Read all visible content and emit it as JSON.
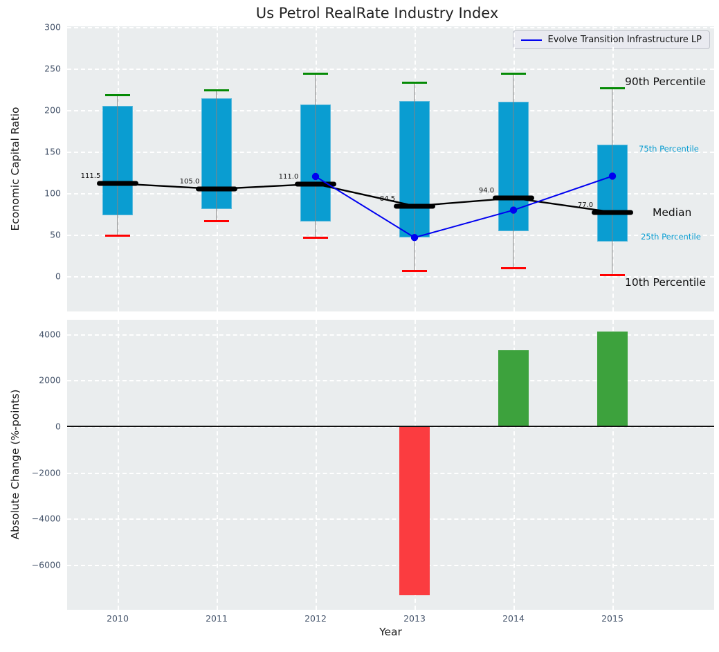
{
  "title": "Us Petrol RealRate Industry Index",
  "colors": {
    "box_fill": "#0a9dd1",
    "box_edge": "#5ab9dc",
    "whisker": "#848484",
    "cap_90th": "#048a04",
    "cap_10th": "#ff0000",
    "median_line": "#000000",
    "company_line": "#0000f0",
    "bar_positive": "#3da23d",
    "bar_negative": "#fb3c40",
    "axes_background": "#eaedee",
    "grid": "#ffffff",
    "tick_text": "#44536a",
    "percentile_accent": "#0a9dd1"
  },
  "chart_data": [
    {
      "type": "boxplot+line",
      "title": "Us Petrol RealRate Industry Index",
      "ylabel": "Economic Capital Ratio",
      "ylim": [
        -42.5,
        301
      ],
      "yticks": [
        300,
        250,
        200,
        150,
        100,
        50,
        0
      ],
      "grid": "dashed-white",
      "categories": [
        "2010",
        "2011",
        "2012",
        "2013",
        "2014",
        "2015"
      ],
      "boxes": [
        {
          "year": "2010",
          "p10": 49,
          "p25": 73,
          "median": 111.5,
          "p75": 205,
          "p90": 218,
          "median_label": "111.5"
        },
        {
          "year": "2011",
          "p10": 66,
          "p25": 81,
          "median": 105.0,
          "p75": 214,
          "p90": 224,
          "median_label": "105.0"
        },
        {
          "year": "2012",
          "p10": 46,
          "p25": 66,
          "median": 111.0,
          "p75": 207,
          "p90": 244,
          "median_label": "111.0"
        },
        {
          "year": "2013",
          "p10": 6,
          "p25": 47,
          "median": 84.5,
          "p75": 211,
          "p90": 233,
          "median_label": "84.5"
        },
        {
          "year": "2014",
          "p10": 10,
          "p25": 54,
          "median": 94.0,
          "p75": 210,
          "p90": 244,
          "median_label": "94.0"
        },
        {
          "year": "2015",
          "p10": 1,
          "p25": 42,
          "median": 77.0,
          "p75": 158,
          "p90": 226,
          "median_label": "77.0"
        }
      ],
      "series": [
        {
          "name": "Evolve Transition Infrastructure LP",
          "color": "#0000f0",
          "points": [
            {
              "x": "2012",
              "y": 120
            },
            {
              "x": "2013",
              "y": 46.5
            },
            {
              "x": "2014",
              "y": 79.5
            },
            {
              "x": "2015",
              "y": 120.5
            }
          ]
        }
      ],
      "annotations": [
        {
          "text": "90th Percentile",
          "value": 234,
          "style": "large"
        },
        {
          "text": "75th Percentile",
          "value": 153,
          "style": "small"
        },
        {
          "text": "Median",
          "value": 76.5,
          "style": "large"
        },
        {
          "text": "25th Percentile",
          "value": 47.5,
          "style": "small"
        },
        {
          "text": "10th Percentile",
          "value": -7.5,
          "style": "large"
        }
      ],
      "legend": {
        "label": "Evolve Transition Infrastructure LP",
        "position": "upper right"
      }
    },
    {
      "type": "bar",
      "ylabel": "Absolute Change (%-points)",
      "xlabel": "Year",
      "ylim": [
        -7900,
        4650
      ],
      "yticks": [
        4000,
        2000,
        0,
        -2000,
        -4000,
        -6000
      ],
      "grid": "dashed-white",
      "categories": [
        "2010",
        "2011",
        "2012",
        "2013",
        "2014",
        "2015"
      ],
      "values": [
        null,
        null,
        null,
        -7300,
        3300,
        4100
      ]
    }
  ]
}
